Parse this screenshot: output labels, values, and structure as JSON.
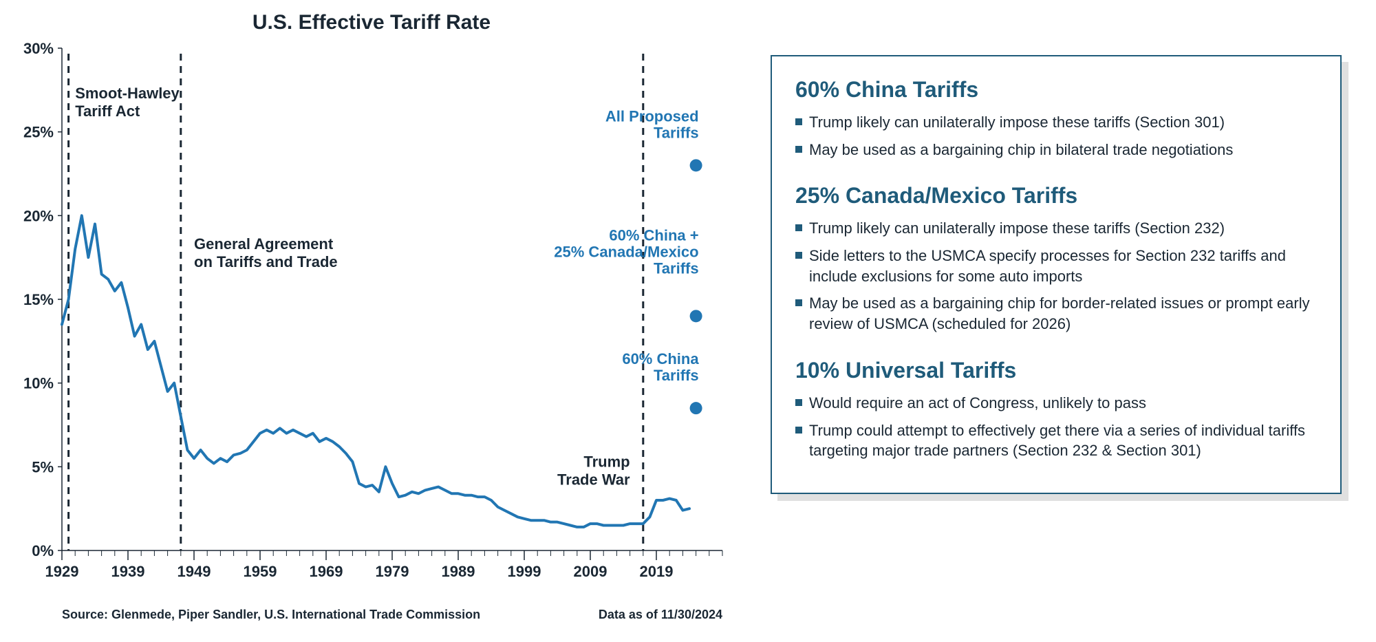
{
  "chart": {
    "type": "line_with_scatter",
    "title": "U.S. Effective Tariff Rate",
    "title_fontsize": 30,
    "title_color": "#1a2733",
    "background_color": "#ffffff",
    "axis_color": "#1a2733",
    "axis_fontsize": 22,
    "line_color": "#2176b3",
    "line_width": 4,
    "ylim": [
      0,
      30
    ],
    "ytick_step": 5,
    "ytick_suffix": "%",
    "xlim": [
      1929,
      2029
    ],
    "xtick_start": 1929,
    "xtick_step": 10,
    "xtick_end": 2019,
    "minor_xtick_step": 2,
    "series": [
      {
        "x": 1929,
        "y": 13.5
      },
      {
        "x": 1930,
        "y": 15.0
      },
      {
        "x": 1931,
        "y": 18.0
      },
      {
        "x": 1932,
        "y": 20.0
      },
      {
        "x": 1933,
        "y": 17.5
      },
      {
        "x": 1934,
        "y": 19.5
      },
      {
        "x": 1935,
        "y": 16.5
      },
      {
        "x": 1936,
        "y": 16.2
      },
      {
        "x": 1937,
        "y": 15.5
      },
      {
        "x": 1938,
        "y": 16.0
      },
      {
        "x": 1939,
        "y": 14.5
      },
      {
        "x": 1940,
        "y": 12.8
      },
      {
        "x": 1941,
        "y": 13.5
      },
      {
        "x": 1942,
        "y": 12.0
      },
      {
        "x": 1943,
        "y": 12.5
      },
      {
        "x": 1944,
        "y": 11.0
      },
      {
        "x": 1945,
        "y": 9.5
      },
      {
        "x": 1946,
        "y": 10.0
      },
      {
        "x": 1947,
        "y": 8.0
      },
      {
        "x": 1948,
        "y": 6.0
      },
      {
        "x": 1949,
        "y": 5.5
      },
      {
        "x": 1950,
        "y": 6.0
      },
      {
        "x": 1951,
        "y": 5.5
      },
      {
        "x": 1952,
        "y": 5.2
      },
      {
        "x": 1953,
        "y": 5.5
      },
      {
        "x": 1954,
        "y": 5.3
      },
      {
        "x": 1955,
        "y": 5.7
      },
      {
        "x": 1956,
        "y": 5.8
      },
      {
        "x": 1957,
        "y": 6.0
      },
      {
        "x": 1958,
        "y": 6.5
      },
      {
        "x": 1959,
        "y": 7.0
      },
      {
        "x": 1960,
        "y": 7.2
      },
      {
        "x": 1961,
        "y": 7.0
      },
      {
        "x": 1962,
        "y": 7.3
      },
      {
        "x": 1963,
        "y": 7.0
      },
      {
        "x": 1964,
        "y": 7.2
      },
      {
        "x": 1965,
        "y": 7.0
      },
      {
        "x": 1966,
        "y": 6.8
      },
      {
        "x": 1967,
        "y": 7.0
      },
      {
        "x": 1968,
        "y": 6.5
      },
      {
        "x": 1969,
        "y": 6.7
      },
      {
        "x": 1970,
        "y": 6.5
      },
      {
        "x": 1971,
        "y": 6.2
      },
      {
        "x": 1972,
        "y": 5.8
      },
      {
        "x": 1973,
        "y": 5.3
      },
      {
        "x": 1974,
        "y": 4.0
      },
      {
        "x": 1975,
        "y": 3.8
      },
      {
        "x": 1976,
        "y": 3.9
      },
      {
        "x": 1977,
        "y": 3.5
      },
      {
        "x": 1978,
        "y": 5.0
      },
      {
        "x": 1979,
        "y": 4.0
      },
      {
        "x": 1980,
        "y": 3.2
      },
      {
        "x": 1981,
        "y": 3.3
      },
      {
        "x": 1982,
        "y": 3.5
      },
      {
        "x": 1983,
        "y": 3.4
      },
      {
        "x": 1984,
        "y": 3.6
      },
      {
        "x": 1985,
        "y": 3.7
      },
      {
        "x": 1986,
        "y": 3.8
      },
      {
        "x": 1987,
        "y": 3.6
      },
      {
        "x": 1988,
        "y": 3.4
      },
      {
        "x": 1989,
        "y": 3.4
      },
      {
        "x": 1990,
        "y": 3.3
      },
      {
        "x": 1991,
        "y": 3.3
      },
      {
        "x": 1992,
        "y": 3.2
      },
      {
        "x": 1993,
        "y": 3.2
      },
      {
        "x": 1994,
        "y": 3.0
      },
      {
        "x": 1995,
        "y": 2.6
      },
      {
        "x": 1996,
        "y": 2.4
      },
      {
        "x": 1997,
        "y": 2.2
      },
      {
        "x": 1998,
        "y": 2.0
      },
      {
        "x": 1999,
        "y": 1.9
      },
      {
        "x": 2000,
        "y": 1.8
      },
      {
        "x": 2001,
        "y": 1.8
      },
      {
        "x": 2002,
        "y": 1.8
      },
      {
        "x": 2003,
        "y": 1.7
      },
      {
        "x": 2004,
        "y": 1.7
      },
      {
        "x": 2005,
        "y": 1.6
      },
      {
        "x": 2006,
        "y": 1.5
      },
      {
        "x": 2007,
        "y": 1.4
      },
      {
        "x": 2008,
        "y": 1.4
      },
      {
        "x": 2009,
        "y": 1.6
      },
      {
        "x": 2010,
        "y": 1.6
      },
      {
        "x": 2011,
        "y": 1.5
      },
      {
        "x": 2012,
        "y": 1.5
      },
      {
        "x": 2013,
        "y": 1.5
      },
      {
        "x": 2014,
        "y": 1.5
      },
      {
        "x": 2015,
        "y": 1.6
      },
      {
        "x": 2016,
        "y": 1.6
      },
      {
        "x": 2017,
        "y": 1.6
      },
      {
        "x": 2018,
        "y": 2.0
      },
      {
        "x": 2019,
        "y": 3.0
      },
      {
        "x": 2020,
        "y": 3.0
      },
      {
        "x": 2021,
        "y": 3.1
      },
      {
        "x": 2022,
        "y": 3.0
      },
      {
        "x": 2023,
        "y": 2.4
      },
      {
        "x": 2024,
        "y": 2.5
      }
    ],
    "event_markers": [
      {
        "x": 1930,
        "label_lines": [
          "Smoot-Hawley",
          "Tariff Act"
        ],
        "label_x": 1931,
        "label_y": 27,
        "anchor": "start"
      },
      {
        "x": 1947,
        "label_lines": [
          "General Agreement",
          "on Tariffs and Trade"
        ],
        "label_x": 1949,
        "label_y": 18,
        "anchor": "start"
      },
      {
        "x": 2017,
        "label_lines": [
          "Trump",
          "Trade War"
        ],
        "label_x": 2015,
        "label_y": 5,
        "anchor": "end"
      }
    ],
    "event_marker_style": {
      "stroke": "#1a2733",
      "stroke_width": 3,
      "dash": "10,8",
      "label_color": "#1a2733",
      "label_fontsize": 22,
      "label_weight": "700"
    },
    "scatter_points": [
      {
        "x": 2025,
        "y": 23,
        "label_lines": [
          "All Proposed",
          "Tariffs"
        ],
        "label_y_offset": 40
      },
      {
        "x": 2025,
        "y": 14,
        "label_lines": [
          "60% China +",
          "25% Canada/Mexico",
          "Tariffs"
        ],
        "label_y_offset": 62
      },
      {
        "x": 2025,
        "y": 8.5,
        "label_lines": [
          "60% China",
          "Tariffs"
        ],
        "label_y_offset": 40
      }
    ],
    "scatter_style": {
      "fill": "#2176b3",
      "radius": 9,
      "label_color": "#2176b3",
      "label_fontsize": 22,
      "label_weight": "700"
    },
    "footer_source": "Source: Glenmede, Piper Sandler, U.S. International Trade Commission",
    "footer_date": "Data as of 11/30/2024",
    "footer_fontsize": 18
  },
  "panel": {
    "border_color": "#1f5b7a",
    "shadow_color": "rgba(0,0,0,0.12)",
    "title_color": "#1f5b7a",
    "title_fontsize": 32,
    "bullet_color": "#1f5b7a",
    "text_color": "#1a2733",
    "text_fontsize": 22,
    "sections": [
      {
        "title": "60% China Tariffs",
        "bullets": [
          "Trump likely can unilaterally impose these tariffs (Section 301)",
          "May be used as a bargaining chip in bilateral trade negotiations"
        ]
      },
      {
        "title": "25% Canada/Mexico Tariffs",
        "bullets": [
          "Trump likely can unilaterally impose these tariffs (Section 232)",
          "Side letters to the USMCA specify processes for Section 232 tariffs and include exclusions for some auto imports",
          "May be used as a bargaining chip for border-related issues or prompt early review of USMCA (scheduled for 2026)"
        ]
      },
      {
        "title": "10% Universal Tariffs",
        "bullets": [
          "Would require an act of Congress, unlikely to pass",
          "Trump could attempt to effectively get there via a series of individual tariffs targeting major trade partners (Section 232 & Section 301)"
        ]
      }
    ]
  }
}
